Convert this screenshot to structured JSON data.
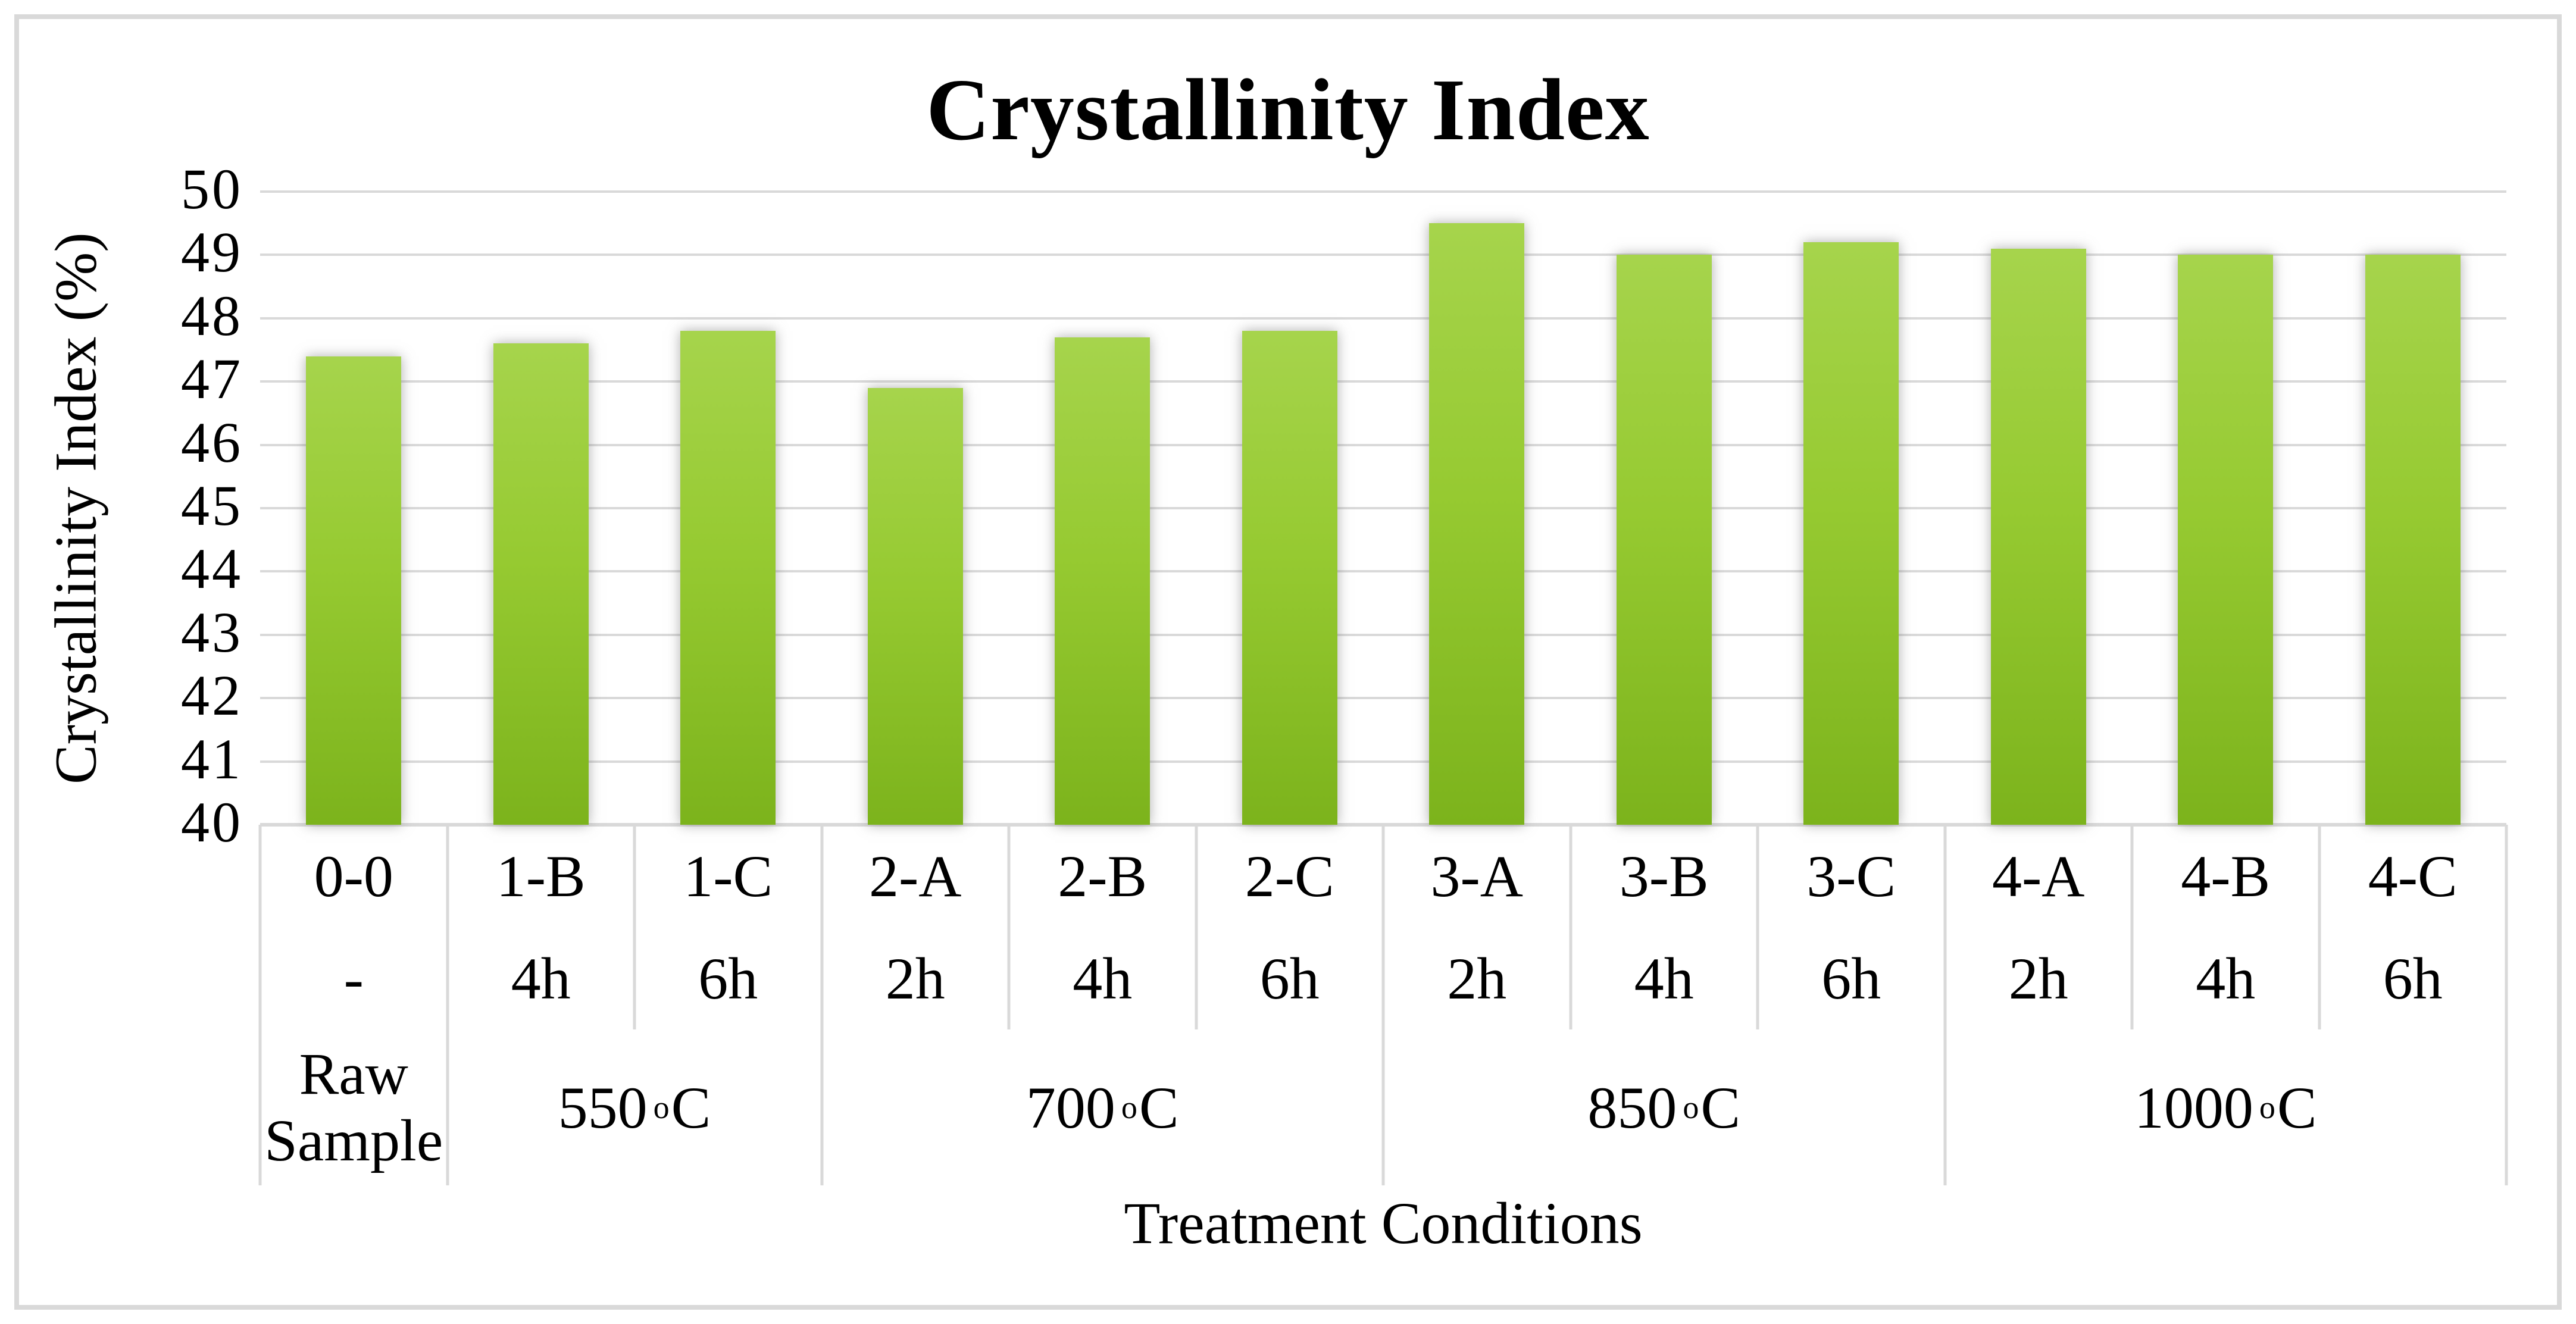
{
  "figure": {
    "kind": "excel-style bar chart screenshot"
  },
  "chart_data": {
    "type": "bar",
    "title": "Crystallinity Index",
    "xlabel": "Treatment Conditions",
    "ylabel": "Crystallinity Index (%)",
    "ylim": [
      40,
      50
    ],
    "yticks": [
      50,
      49,
      48,
      47,
      46,
      45,
      44,
      43,
      42,
      41,
      40
    ],
    "grid": true,
    "legend_position": "none",
    "categories": [
      "0-0",
      "1-B",
      "1-C",
      "2-A",
      "2-B",
      "2-C",
      "3-A",
      "3-B",
      "3-C",
      "4-A",
      "4-B",
      "4-C"
    ],
    "durations": [
      "-",
      "4h",
      "6h",
      "2h",
      "4h",
      "6h",
      "2h",
      "4h",
      "6h",
      "2h",
      "4h",
      "6h"
    ],
    "values": [
      47.4,
      47.6,
      47.8,
      46.9,
      47.7,
      47.8,
      49.5,
      49.0,
      49.2,
      49.1,
      49.0,
      49.0
    ],
    "groups": [
      {
        "label": "Raw Sample",
        "lines": [
          "Raw",
          "Sample"
        ],
        "span": 1
      },
      {
        "label": "550 °C",
        "temp": "550",
        "degree": "o",
        "unit": "C",
        "span": 2
      },
      {
        "label": "700 °C",
        "temp": "700",
        "degree": "o",
        "unit": "C",
        "span": 3
      },
      {
        "label": "850 °C",
        "temp": "850",
        "degree": "o",
        "unit": "C",
        "span": 3
      },
      {
        "label": "1000 °C",
        "temp": "1000",
        "degree": "o",
        "unit": "C",
        "span": 3
      }
    ],
    "style": {
      "bar_top": "#a6d44c",
      "bar_mid": "#96ca31",
      "bar_bottom": "#7cb31c",
      "grid_color": "#d9d9d9",
      "frame_color": "#d9d9d9",
      "text_color": "#000000",
      "background": "#ffffff"
    }
  }
}
